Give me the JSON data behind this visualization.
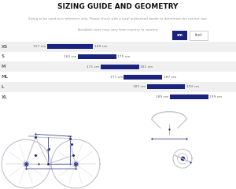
{
  "title": "SIZING GUIDE AND GEOMETRY",
  "subtitle1": "Sizing to be used as a reference only. Please check with a local authorized dealer to determine the correct size.",
  "subtitle2": "Available sizes may vary from country to country.",
  "sizes": [
    "XS",
    "S",
    "M",
    "ML",
    "L",
    "XL"
  ],
  "range_start": [
    157,
    165,
    171,
    177,
    183,
    189
  ],
  "range_end": [
    169,
    175,
    181,
    187,
    193,
    199
  ],
  "bar_color": "#1a237e",
  "bg_color": "#ffffff",
  "row_alt_color": "#f0f0f0",
  "row_main_color": "#ffffff",
  "label_color": "#666666",
  "title_color": "#111111",
  "subtitle_color": "#999999",
  "btn1_color": "#1a237e",
  "btn1_text": "cm",
  "btn2_text": "feet",
  "global_min": 150,
  "global_max": 205,
  "frame_color": "#c0c0cc",
  "dot_color": "#1a237e",
  "mline_color": "#1a237e"
}
